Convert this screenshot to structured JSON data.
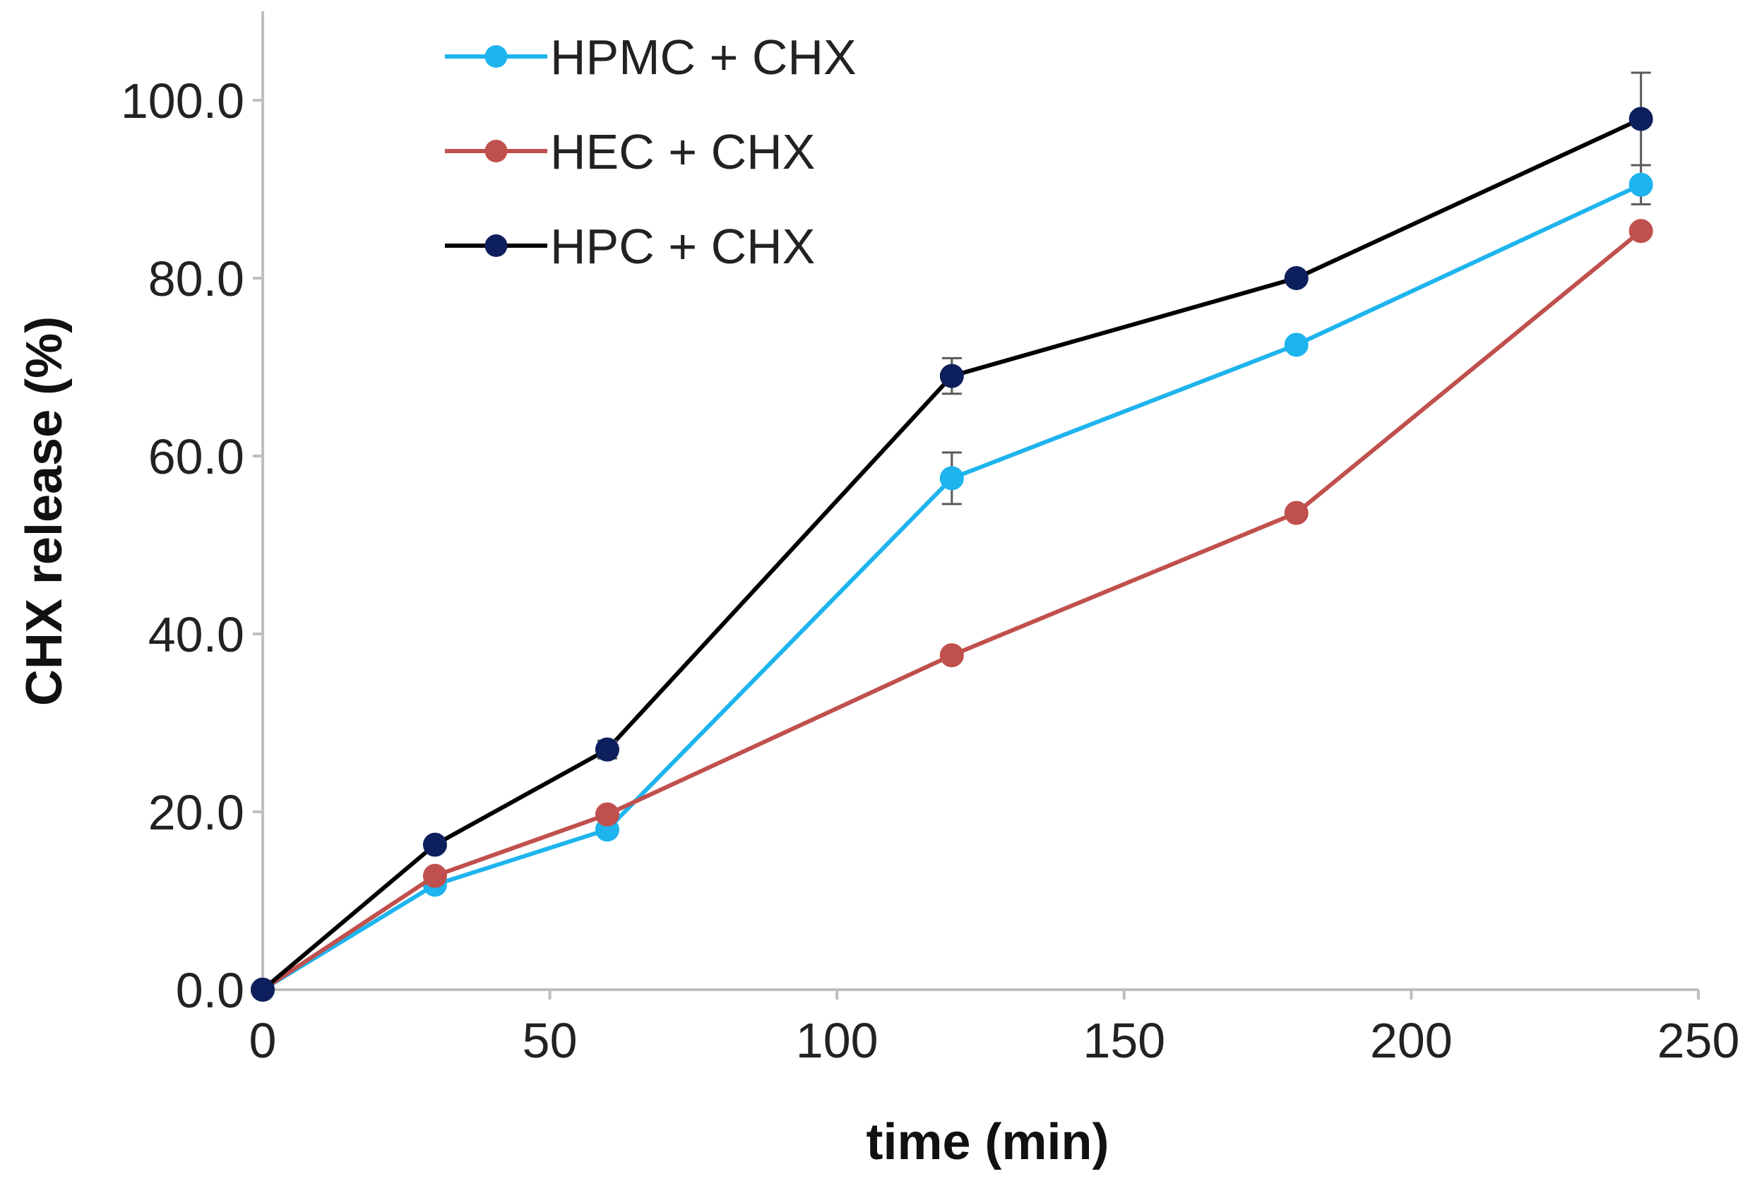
{
  "chart_data": {
    "type": "line",
    "title": "",
    "xlabel": "time (min)",
    "ylabel": "CHX release (%)",
    "xlim": [
      0,
      250
    ],
    "ylim": [
      0,
      110
    ],
    "x_ticks": [
      0,
      50,
      100,
      150,
      200,
      250
    ],
    "y_ticks": [
      0,
      20,
      40,
      60,
      80,
      100
    ],
    "x_tick_labels": [
      "0",
      "50",
      "100",
      "150",
      "200",
      "250"
    ],
    "y_tick_labels": [
      "0.0",
      "20.0",
      "40.0",
      "60.0",
      "80.0",
      "100.0"
    ],
    "grid": false,
    "legend_position": "top-left",
    "x": [
      0,
      30,
      60,
      120,
      180,
      240
    ],
    "series": [
      {
        "name": "HPMC + CHX",
        "color": "#1eb4ee",
        "values": [
          0,
          11.8,
          18.0,
          57.5,
          72.5,
          90.5
        ],
        "errors": [
          0,
          0,
          0,
          2.9,
          0,
          2.2
        ]
      },
      {
        "name": "HEC + CHX",
        "color": "#c0504d",
        "values": [
          0,
          12.8,
          19.7,
          37.6,
          53.6,
          85.3
        ],
        "errors": [
          0,
          0,
          0,
          0,
          0,
          0
        ]
      },
      {
        "name": "HPC + CHX",
        "color": "#0d1f5c",
        "line_color": "#000000",
        "values": [
          0,
          16.3,
          27.0,
          69.0,
          80.0,
          97.9
        ],
        "errors": [
          0,
          0,
          1.0,
          2.0,
          0,
          5.2
        ]
      }
    ]
  }
}
